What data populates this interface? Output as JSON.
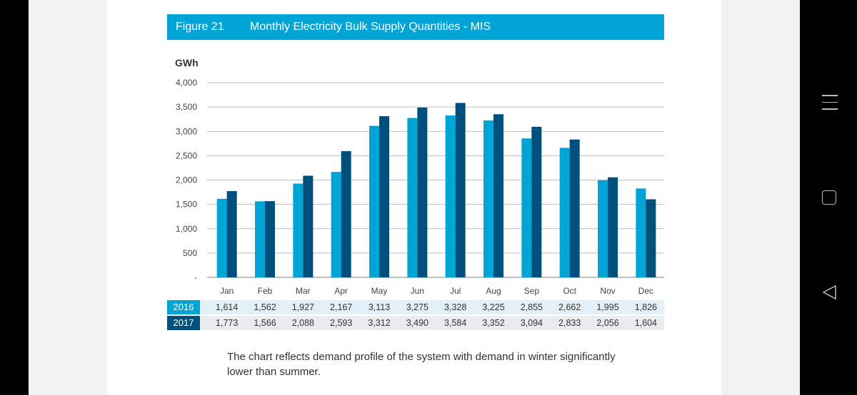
{
  "figure": {
    "number": "Figure 21",
    "title": "Monthly Electricity Bulk Supply Quantities - MIS"
  },
  "colors": {
    "series_2016": "#00a5d6",
    "series_2017": "#00507d",
    "header_bg": "#00a5d6"
  },
  "chart_data": {
    "type": "bar",
    "title": "Monthly Electricity Bulk Supply Quantities - MIS",
    "ylabel": "GWh",
    "xlabel": "",
    "ylim": [
      0,
      4000
    ],
    "yticks": [
      0,
      500,
      1000,
      1500,
      2000,
      2500,
      3000,
      3500,
      4000
    ],
    "ytick_labels": [
      "-",
      "500",
      "1,000",
      "1,500",
      "2,000",
      "2,500",
      "3,000",
      "3,500",
      "4,000"
    ],
    "grid": true,
    "categories": [
      "Jan",
      "Feb",
      "Mar",
      "Apr",
      "May",
      "Jun",
      "Jul",
      "Aug",
      "Sep",
      "Oct",
      "Nov",
      "Dec"
    ],
    "series": [
      {
        "name": "2016",
        "values": [
          1614,
          1562,
          1927,
          2167,
          3113,
          3275,
          3328,
          3225,
          2855,
          2662,
          1995,
          1826
        ],
        "labels": [
          "1,614",
          "1,562",
          "1,927",
          "2,167",
          "3,113",
          "3,275",
          "3,328",
          "3,225",
          "2,855",
          "2,662",
          "1,995",
          "1,826"
        ]
      },
      {
        "name": "2017",
        "values": [
          1773,
          1566,
          2088,
          2593,
          3312,
          3490,
          3584,
          3352,
          3094,
          2833,
          2056,
          1604
        ],
        "labels": [
          "1,773",
          "1,566",
          "2,088",
          "2,593",
          "3,312",
          "3,490",
          "3,584",
          "3,352",
          "3,094",
          "2,833",
          "2,056",
          "1,604"
        ]
      }
    ]
  },
  "caption": "The chart reflects demand profile of the system with demand in winter significantly lower than summer."
}
